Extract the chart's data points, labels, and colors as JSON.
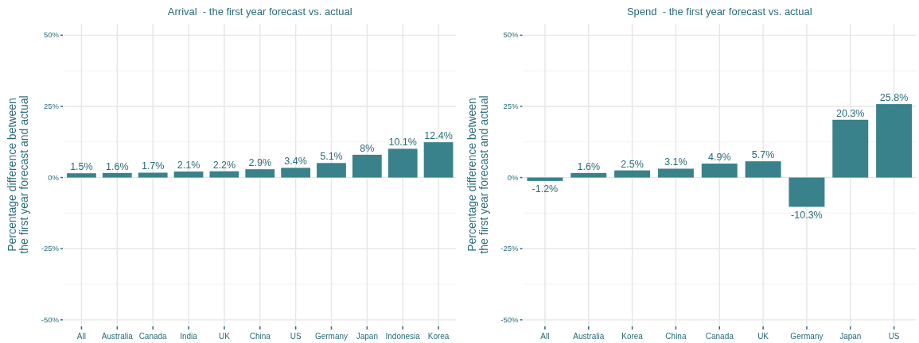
{
  "chart_data": [
    {
      "type": "bar",
      "title": "Arrival  - the first year forecast vs. actual",
      "ylabel": "Percentage difference between\nthe first year forecast and actual",
      "categories": [
        "All",
        "Australia",
        "Canada",
        "India",
        "UK",
        "China",
        "US",
        "Germany",
        "Japan",
        "Indonesia",
        "Korea"
      ],
      "values": [
        1.5,
        1.6,
        1.7,
        2.1,
        2.2,
        2.9,
        3.4,
        5.1,
        8,
        10.1,
        12.4
      ],
      "value_labels": [
        "1.5%",
        "1.6%",
        "1.7%",
        "2.1%",
        "2.2%",
        "2.9%",
        "3.4%",
        "5.1%",
        "8%",
        "10.1%",
        "12.4%"
      ],
      "color": "#2e7b86",
      "ylim": [
        -52,
        54
      ],
      "yticks": [
        {
          "value": -50,
          "label": "-50%"
        },
        {
          "value": -25,
          "label": "-25%"
        },
        {
          "value": 0,
          "label": "0%"
        },
        {
          "value": 25,
          "label": "25%"
        },
        {
          "value": 50,
          "label": "50%"
        }
      ],
      "grid": true
    },
    {
      "type": "bar",
      "title": "Spend  - the first year forecast vs. actual",
      "ylabel": "Percentage difference between\nthe first year forecast and actual",
      "categories": [
        "All",
        "Australia",
        "Korea",
        "China",
        "Canada",
        "UK",
        "Germany",
        "Japan",
        "US"
      ],
      "values": [
        -1.2,
        1.6,
        2.5,
        3.1,
        4.9,
        5.7,
        -10.3,
        20.3,
        25.8
      ],
      "value_labels": [
        "-1.2%",
        "1.6%",
        "2.5%",
        "3.1%",
        "4.9%",
        "5.7%",
        "-10.3%",
        "20.3%",
        "25.8%"
      ],
      "color": "#2e7b86",
      "ylim": [
        -52,
        54
      ],
      "yticks": [
        {
          "value": -50,
          "label": "-50%"
        },
        {
          "value": -25,
          "label": "-25%"
        },
        {
          "value": 0,
          "label": "0%"
        },
        {
          "value": 25,
          "label": "25%"
        },
        {
          "value": 50,
          "label": "50%"
        }
      ],
      "grid": true
    }
  ]
}
